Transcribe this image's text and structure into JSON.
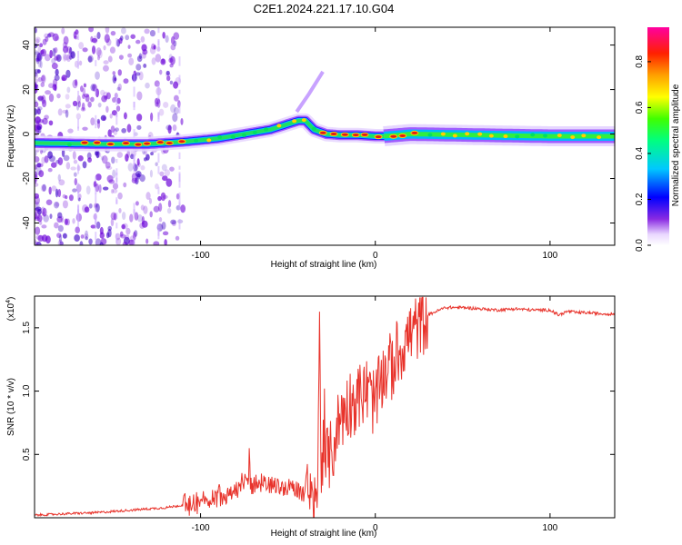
{
  "title": "C2E1.2024.221.17.10.G04",
  "colors": {
    "trace": "#e8332b",
    "axis": "#000000",
    "spectro_faint": "#6a00d8",
    "ridge_inner": "#e01818"
  },
  "chart_data": [
    {
      "type": "heatmap",
      "name": "spectrogram",
      "xlabel": "Height of straight line (km)",
      "ylabel": "Frequency (Hz)",
      "xlim": [
        -195,
        137
      ],
      "ylim": [
        -50,
        48
      ],
      "xticks": [
        -100,
        0,
        100
      ],
      "xtick_labels": [
        "-100",
        "0",
        "100"
      ],
      "yticks": [
        -40,
        -20,
        0,
        20,
        40
      ],
      "ytick_labels": [
        "-40",
        "-20",
        "0",
        "20",
        "40"
      ],
      "ridge": {
        "x": [
          -195,
          -160,
          -130,
          -110,
          -90,
          -75,
          -60,
          -50,
          -44,
          -40,
          -35,
          -28,
          -20,
          -10,
          0,
          5,
          20,
          60,
          100,
          137
        ],
        "y": [
          -4,
          -4.5,
          -4.5,
          -3.5,
          -2,
          0,
          2,
          4.5,
          6,
          6,
          2,
          0,
          -0.5,
          -0.5,
          -1,
          -1,
          0,
          -0.5,
          -1,
          -1
        ]
      },
      "spur": {
        "x": [
          -45,
          -38,
          -30
        ],
        "y": [
          10,
          18,
          28
        ]
      },
      "colorbar": {
        "label": "Normalized spectral amplitude",
        "range": [
          0,
          0.95
        ],
        "ticks": [
          0.0,
          0.2,
          0.4,
          0.6,
          0.8
        ],
        "tick_labels": [
          "0.0",
          "0.2",
          "0.4",
          "0.6",
          "0.8"
        ]
      }
    },
    {
      "type": "line",
      "name": "snr",
      "xlabel": "Height of straight line (km)",
      "ylabel": "SNR (10 * v/v)",
      "scale_label": "(x10",
      "scale_exp": "4",
      "xlim": [
        -195,
        137
      ],
      "ylim": [
        0,
        1.75
      ],
      "xticks": [
        -100,
        0,
        100
      ],
      "xtick_labels": [
        "-100",
        "0",
        "100"
      ],
      "yticks": [
        0.5,
        1.0,
        1.5
      ],
      "ytick_labels": [
        "0.5",
        "1.0",
        "1.5"
      ],
      "series": [
        {
          "name": "SNR",
          "x": [
            -195,
            -180,
            -160,
            -150,
            -140,
            -130,
            -120,
            -110,
            -100,
            -90,
            -80,
            -75,
            -70,
            -60,
            -50,
            -45,
            -40,
            -37,
            -35,
            -33,
            -32,
            -31,
            -30,
            -28,
            -25,
            -22,
            -20,
            -15,
            -10,
            -5,
            0,
            5,
            10,
            15,
            20,
            25,
            30,
            40,
            50,
            60,
            70,
            80,
            90,
            100,
            105,
            110,
            115,
            120,
            130,
            137
          ],
          "values": [
            0.02,
            0.03,
            0.04,
            0.05,
            0.06,
            0.07,
            0.08,
            0.1,
            0.12,
            0.18,
            0.22,
            0.28,
            0.25,
            0.26,
            0.24,
            0.22,
            0.2,
            0.12,
            0.05,
            0.25,
            1.55,
            0.4,
            0.5,
            0.45,
            0.5,
            0.7,
            0.8,
            0.9,
            0.95,
            1.0,
            0.9,
            1.15,
            1.2,
            1.35,
            1.45,
            1.52,
            1.6,
            1.66,
            1.66,
            1.65,
            1.64,
            1.65,
            1.64,
            1.64,
            1.6,
            1.63,
            1.62,
            1.62,
            1.61,
            1.61
          ]
        }
      ]
    }
  ]
}
